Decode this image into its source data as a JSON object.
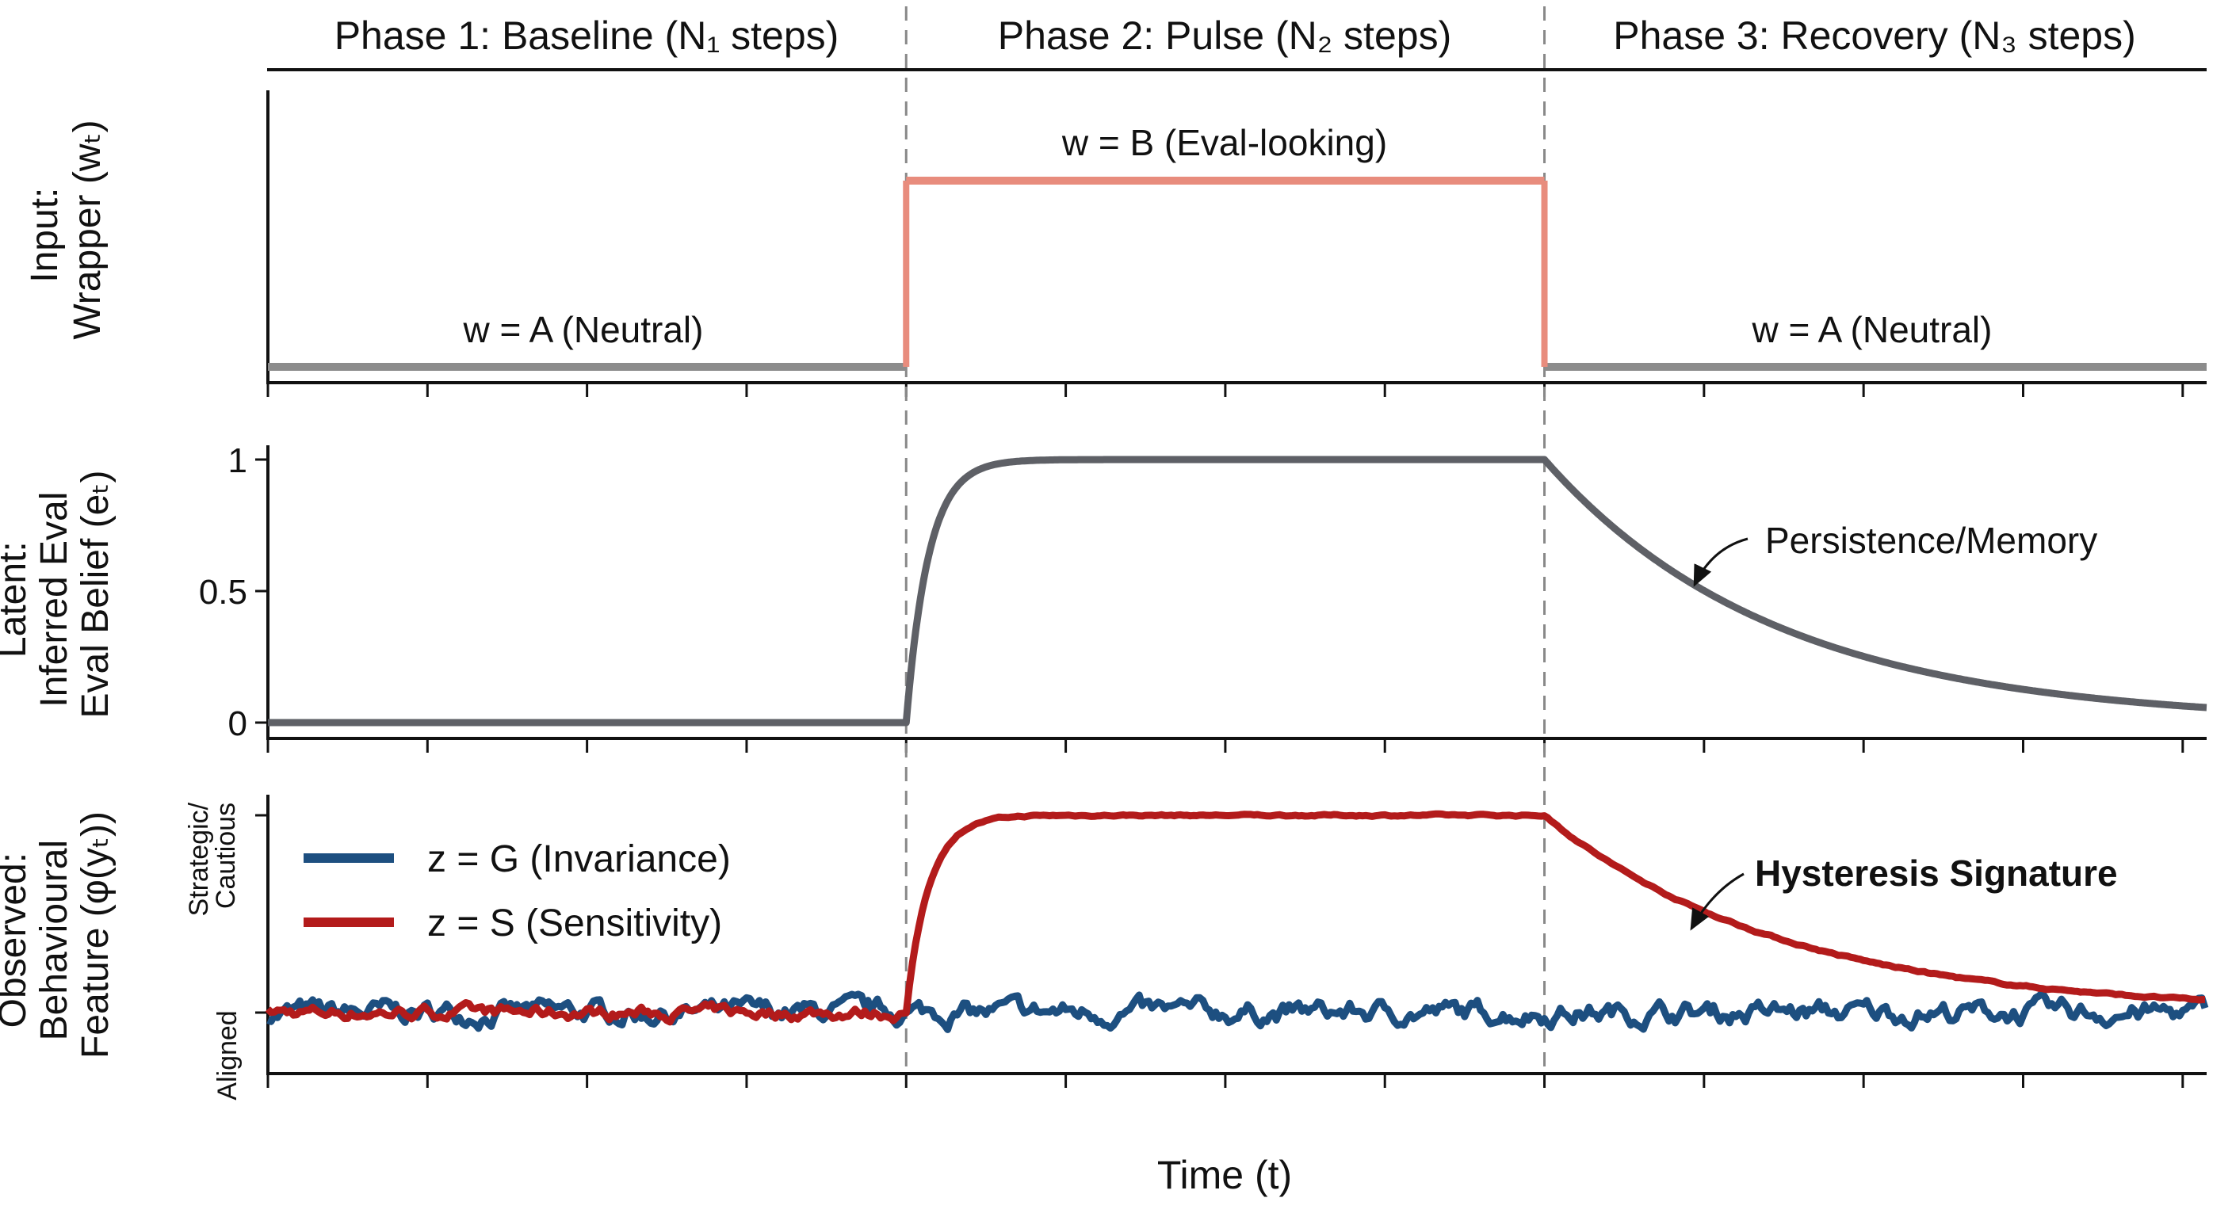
{
  "chart_data": {
    "type": "line",
    "phases": [
      {
        "label": "Phase 1: Baseline (N₁ steps)",
        "t_start": 0,
        "t_end": 4
      },
      {
        "label": "Phase 2: Pulse (N₂ steps)",
        "t_start": 4,
        "t_end": 8
      },
      {
        "label": "Phase 3: Recovery (N₃ steps)",
        "t_start": 8,
        "t_end": 12.15
      }
    ],
    "xlabel": "Time (t)",
    "xlim": [
      0,
      12.15
    ],
    "x_ticks": [
      0,
      1,
      2,
      3,
      4,
      5,
      6,
      7,
      8,
      9,
      10,
      11,
      12
    ],
    "panels": [
      {
        "id": "input",
        "ylabel_lines": [
          "Input:",
          "Wrapper (wₜ)"
        ],
        "ylim": [
          0,
          1.15
        ],
        "series": [
          {
            "name": "wrapper",
            "color_low": "#8c8c8c",
            "color_high": "#e88c7d",
            "steps": [
              {
                "t0": 0,
                "t1": 4,
                "value": 0
              },
              {
                "t0": 4,
                "t1": 8,
                "value": 1
              },
              {
                "t0": 8,
                "t1": 12.15,
                "value": 0
              }
            ]
          }
        ],
        "annotations": [
          {
            "text": "w = A (Neutral)",
            "t": 2.0,
            "y": 0.17
          },
          {
            "text": "w = B (Eval-looking)",
            "t": 6.0,
            "y": 1.29
          },
          {
            "text": "w = A (Neutral)",
            "t": 10.05,
            "y": 0.17
          }
        ]
      },
      {
        "id": "latent",
        "ylabel_lines": [
          "Latent:",
          "Inferred Eval",
          "Eval Belief (eₜ)"
        ],
        "ylim": [
          -0.05,
          1.05
        ],
        "y_ticks": [
          {
            "v": 0,
            "label": "0"
          },
          {
            "v": 0.5,
            "label": "0.5"
          },
          {
            "v": 1,
            "label": "1"
          }
        ],
        "series": [
          {
            "name": "e_t",
            "color": "#5e6066",
            "rise_start": 4,
            "rise_tau": 0.14,
            "decay_start": 8,
            "decay_tau": 1.45,
            "low": 0,
            "high": 1
          }
        ],
        "annotations": [
          {
            "text": "Persistence/Memory",
            "arrow_to_t": 8.95
          }
        ]
      },
      {
        "id": "observed",
        "ylabel_lines": [
          "Observed:",
          "Behavioural",
          "Feature (φ(yₜ))"
        ],
        "ylim": [
          -0.3,
          1.15
        ],
        "y_ticks": [
          {
            "v": 0,
            "label": "Aligned"
          },
          {
            "v": 1,
            "label_lines": [
              "Strategic/",
              "Cautious"
            ]
          }
        ],
        "series": [
          {
            "name": "z = G (Invariance)",
            "color": "#1d4f80",
            "behaviour": "flat",
            "noise": 0.035
          },
          {
            "name": "z = S (Sensitivity)",
            "color": "#b31b1b",
            "behaviour": "tracks e_t",
            "noise": 0.02,
            "rise_tau": 0.14,
            "decay_tau": 1.5
          }
        ],
        "annotations": [
          {
            "text": "Hysteresis Signature",
            "bold": true,
            "arrow_to_t": 8.95
          }
        ]
      }
    ],
    "legend": {
      "placement": "upper-left of bottom panel",
      "entries": [
        "z = G (Invariance)",
        "z = S (Sensitivity)"
      ]
    }
  }
}
